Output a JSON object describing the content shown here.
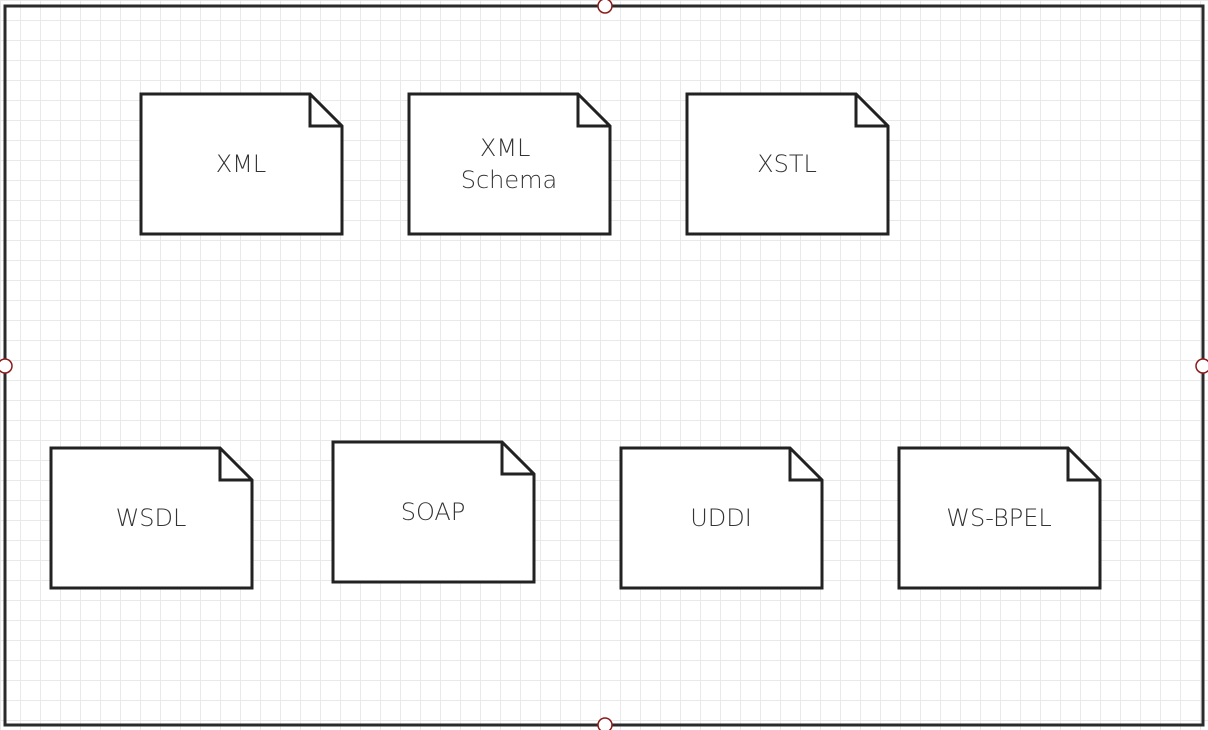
{
  "diagram": {
    "shape_type": "document",
    "top_row": [
      {
        "id": "xml",
        "label": [
          "XML"
        ]
      },
      {
        "id": "xml-schema",
        "label": [
          "XML",
          "Schema"
        ]
      },
      {
        "id": "xstl",
        "label": [
          "XSTL"
        ]
      }
    ],
    "bottom_row": [
      {
        "id": "wsdl",
        "label": [
          "WSDL"
        ]
      },
      {
        "id": "soap",
        "label": [
          "SOAP"
        ]
      },
      {
        "id": "uddi",
        "label": [
          "UDDI"
        ]
      },
      {
        "id": "ws-bpel",
        "label": [
          "WS-BPEL"
        ]
      }
    ]
  },
  "colors": {
    "stroke": "#222222",
    "handle_stroke": "#8b1a1a",
    "text": "#333333",
    "grid": "#e9e9e9"
  }
}
